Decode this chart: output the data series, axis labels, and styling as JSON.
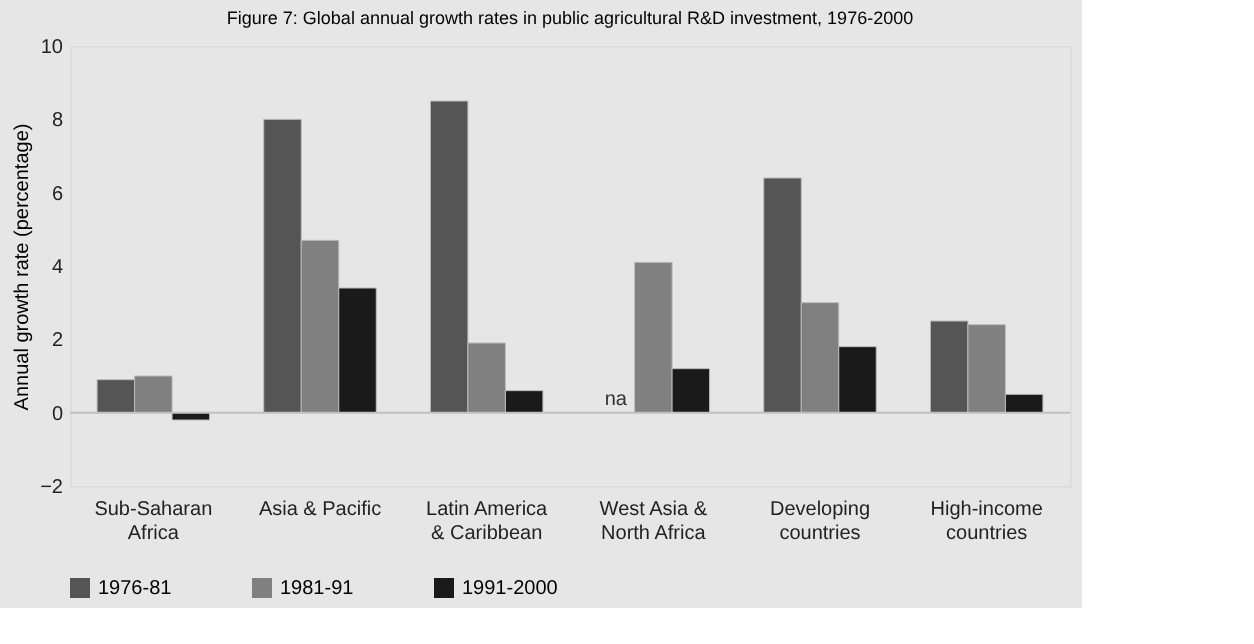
{
  "chart_data": {
    "type": "bar",
    "title": "Figure 7: Global annual growth rates in public agricultural R&D investment, 1976-2000",
    "ylabel": "Annual growth rate (percentage)",
    "categories": [
      "Sub-Saharan\nAfrica",
      "Asia & Pacific",
      "Latin America\n& Caribbean",
      "West Asia &\nNorth Africa",
      "Developing\ncountries",
      "High-income\ncountries"
    ],
    "series": [
      {
        "name": "1976-81",
        "color": "#555555",
        "values": [
          0.9,
          8.0,
          8.5,
          null,
          6.4,
          2.5
        ]
      },
      {
        "name": "1981-91",
        "color": "#808080",
        "values": [
          1.0,
          4.7,
          1.9,
          4.1,
          3.0,
          2.4
        ]
      },
      {
        "name": "1991-2000",
        "color": "#1a1a1a",
        "values": [
          -0.2,
          3.4,
          0.6,
          1.2,
          1.8,
          0.5
        ]
      }
    ],
    "ylim": [
      -2,
      10
    ],
    "yticks": [
      -2,
      0,
      2,
      4,
      6,
      8,
      10
    ],
    "annotations": [
      {
        "text": "na",
        "x": "West Asia &\nNorth Africa",
        "y": 0
      }
    ],
    "ref_lines": [
      {
        "axis": "y",
        "value": 0,
        "color": "#c0c0c0"
      }
    ],
    "grid": false,
    "legend": "bottom"
  }
}
